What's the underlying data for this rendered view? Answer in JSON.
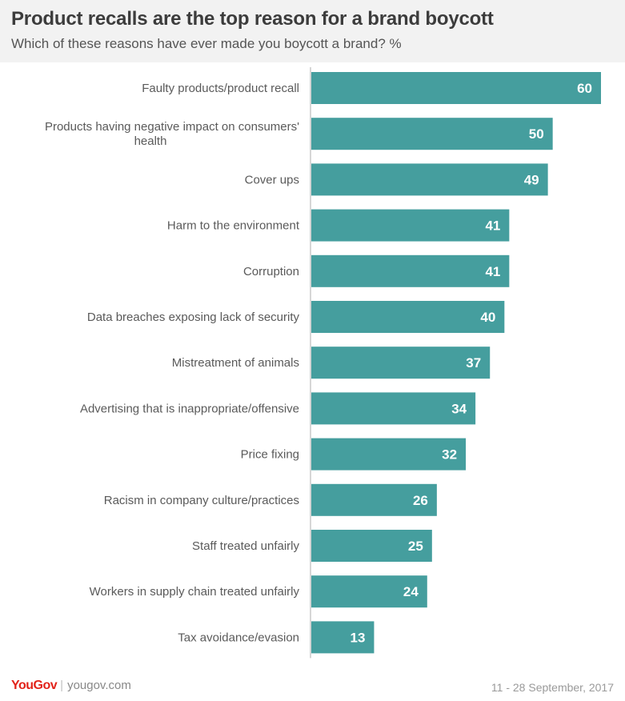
{
  "header": {
    "title": "Product recalls are the top reason for a brand boycott",
    "subtitle": "Which of these reasons have ever made you boycott a brand? %"
  },
  "footer": {
    "brand": "YouGov",
    "site": "yougov.com",
    "date": "11 - 28 September, 2017"
  },
  "colors": {
    "bar": "#459e9e",
    "axis": "#c8c8c8",
    "brand": "#e2231a"
  },
  "chart_data": {
    "type": "bar",
    "orientation": "horizontal",
    "categories": [
      [
        "Faulty products/product recall"
      ],
      [
        "Products having negative impact on consumers'",
        "health"
      ],
      [
        "Cover ups"
      ],
      [
        "Harm to the environment"
      ],
      [
        "Corruption"
      ],
      [
        "Data breaches exposing lack of security"
      ],
      [
        "Mistreatment of animals"
      ],
      [
        "Advertising that is inappropriate/offensive"
      ],
      [
        "Price fixing"
      ],
      [
        "Racism in company culture/practices"
      ],
      [
        "Staff treated unfairly"
      ],
      [
        "Workers in supply chain treated unfairly"
      ],
      [
        "Tax avoidance/evasion"
      ]
    ],
    "values": [
      60,
      50,
      49,
      41,
      41,
      40,
      37,
      34,
      32,
      26,
      25,
      24,
      13
    ],
    "xlim": [
      0,
      60
    ],
    "data_labels": true,
    "grid": false,
    "legend": "none"
  }
}
